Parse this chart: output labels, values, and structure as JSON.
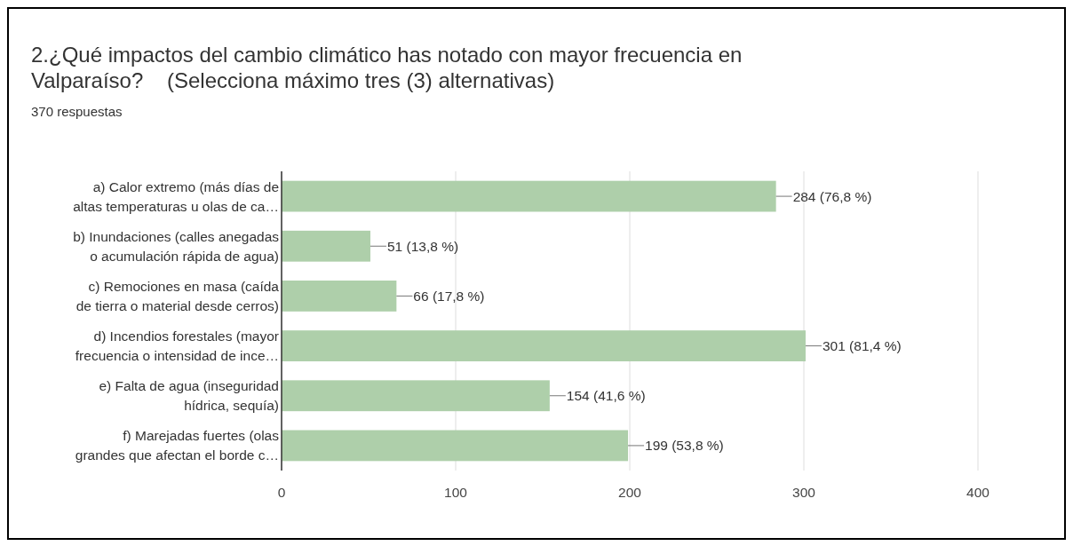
{
  "chart_data": {
    "type": "bar",
    "orientation": "horizontal",
    "title": "2.¿Qué impactos del cambio climático has notado con mayor frecuencia en\nValparaíso?    (Selecciona máximo tres (3) alternativas)",
    "subtitle": "370 respuestas",
    "categories": [
      "a) Calor extremo (más días de\naltas temperaturas u olas de ca…",
      "b) Inundaciones (calles anegadas\no acumulación rápida de agua)",
      "c) Remociones en masa (caída\nde tierra o material desde cerros)",
      "d) Incendios forestales (mayor\nfrecuencia o intensidad de ince…",
      "e) Falta de agua (inseguridad\nhídrica, sequía)",
      "f) Marejadas fuertes (olas\ngrandes que afectan el borde c…"
    ],
    "values": [
      284,
      51,
      66,
      301,
      154,
      199
    ],
    "value_labels": [
      "284 (76,8 %)",
      "51 (13,8 %)",
      "66 (17,8 %)",
      "301 (81,4 %)",
      "154 (41,6 %)",
      "199 (53,8 %)"
    ],
    "color": "#aecfaa",
    "xlim": [
      0,
      400
    ],
    "xticks": [
      0,
      100,
      200,
      300,
      400
    ],
    "grid": "x"
  }
}
